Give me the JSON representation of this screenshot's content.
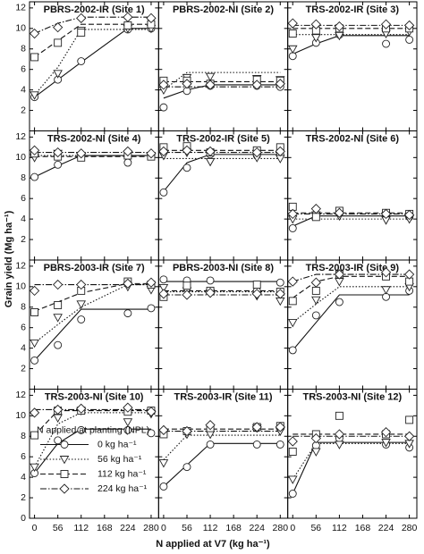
{
  "chart_data": {
    "type": "line",
    "xlabel": "N applied at V7 (kg ha⁻¹)",
    "ylabel": "Grain yield (Mg ha⁻¹)",
    "x": [
      0,
      56,
      112,
      224,
      280
    ],
    "xlim": [
      -12,
      298
    ],
    "xticks": [
      0,
      56,
      112,
      168,
      224,
      280
    ],
    "ylim": [
      0,
      12.6
    ],
    "yticks": [
      0,
      2,
      4,
      6,
      8,
      10,
      12
    ],
    "legend_title": "N applied at planting (NPL)",
    "legend_panel": 9,
    "series_styles": [
      {
        "name": "0 kg ha⁻¹",
        "marker": "circle",
        "dash": "solid"
      },
      {
        "name": "56 kg ha⁻¹",
        "marker": "triangle",
        "dash": "dotted"
      },
      {
        "name": "112 kg ha⁻¹",
        "marker": "square",
        "dash": "dashed"
      },
      {
        "name": "224 kg ha⁻¹",
        "marker": "diamond",
        "dash": "dashdot"
      }
    ],
    "panels": [
      {
        "title": "PBRS-2002-IR (Site 1)",
        "series": [
          {
            "values": [
              3.3,
              5.0,
              6.8,
              9.9,
              10.0
            ],
            "fit": [
              3.3,
              5.0,
              6.7,
              10.0,
              10.0
            ]
          },
          {
            "values": [
              3.5,
              5.6,
              9.8,
              10.0,
              10.0
            ],
            "fit": [
              3.5,
              6.2,
              9.9,
              9.9,
              9.9
            ]
          },
          {
            "values": [
              7.2,
              8.6,
              9.6,
              10.3,
              10.4
            ],
            "fit": [
              7.2,
              8.8,
              10.4,
              10.4,
              10.4
            ]
          },
          {
            "values": [
              9.5,
              10.1,
              11.0,
              11.1,
              11.0
            ],
            "fit": [
              9.5,
              10.5,
              11.1,
              11.1,
              11.1
            ]
          }
        ]
      },
      {
        "title": "PBRS-2002-NI (Site 2)",
        "series": [
          {
            "values": [
              2.3,
              3.9,
              4.4,
              4.4,
              4.3
            ],
            "fit": [
              3.2,
              4.0,
              4.5,
              4.5,
              4.5
            ]
          },
          {
            "values": [
              4.0,
              5.2,
              5.3,
              5.1,
              5.0
            ],
            "fit": [
              4.0,
              5.7,
              5.7,
              5.7,
              5.7
            ]
          },
          {
            "values": [
              4.9,
              4.9,
              4.6,
              5.0,
              4.9
            ],
            "fit": [
              4.8,
              4.8,
              4.8,
              4.8,
              4.8
            ]
          },
          {
            "values": [
              4.5,
              4.6,
              4.5,
              4.5,
              4.6
            ],
            "fit": [
              4.3,
              4.3,
              4.3,
              4.3,
              4.3
            ]
          }
        ]
      },
      {
        "title": "TRS-2002-IR (Site 3)",
        "series": [
          {
            "values": [
              7.3,
              8.6,
              9.4,
              8.5,
              8.9
            ],
            "fit": [
              7.5,
              8.5,
              9.3,
              9.3,
              9.3
            ]
          },
          {
            "values": [
              8.0,
              9.1,
              9.3,
              9.5,
              9.7
            ],
            "fit": [
              9.4,
              9.4,
              9.4,
              9.4,
              9.4
            ]
          },
          {
            "values": [
              9.5,
              9.8,
              10.0,
              10.0,
              10.0
            ],
            "fit": [
              10.0,
              10.0,
              10.0,
              10.0,
              10.0
            ]
          },
          {
            "values": [
              10.5,
              10.4,
              10.2,
              10.4,
              10.3
            ],
            "fit": [
              10.3,
              10.3,
              10.3,
              10.3,
              10.3
            ]
          }
        ]
      },
      {
        "title": "TRS-2002-NI (Site 4)",
        "series": [
          {
            "values": [
              8.1,
              9.3,
              10.1,
              9.5,
              10.2
            ],
            "fit": [
              8.1,
              9.2,
              10.2,
              10.2,
              10.2
            ]
          },
          {
            "values": [
              10.0,
              10.4,
              10.2,
              10.3,
              10.2
            ],
            "fit": [
              10.2,
              10.2,
              10.2,
              10.2,
              10.2
            ]
          },
          {
            "values": [
              10.4,
              10.1,
              10.0,
              10.2,
              10.1
            ],
            "fit": [
              10.1,
              10.1,
              10.1,
              10.1,
              10.1
            ]
          },
          {
            "values": [
              10.7,
              10.5,
              10.4,
              10.6,
              10.4
            ],
            "fit": [
              10.5,
              10.5,
              10.5,
              10.5,
              10.5
            ]
          }
        ]
      },
      {
        "title": "TRS-2002-IR (Site 5)",
        "series": [
          {
            "values": [
              6.6,
              9.0,
              10.3,
              10.2,
              10.3
            ],
            "fit": [
              6.7,
              9.5,
              10.3,
              10.3,
              10.3
            ]
          },
          {
            "values": [
              10.2,
              10.5,
              9.6,
              10.0,
              9.9
            ],
            "fit": [
              9.9,
              9.9,
              9.9,
              9.9,
              9.9
            ]
          },
          {
            "values": [
              11.0,
              11.1,
              10.5,
              10.7,
              11.0
            ],
            "fit": [
              10.7,
              10.7,
              10.7,
              10.7,
              10.7
            ]
          },
          {
            "values": [
              10.6,
              10.7,
              10.6,
              10.5,
              10.6
            ],
            "fit": [
              10.5,
              10.5,
              10.5,
              10.5,
              10.5
            ]
          }
        ]
      },
      {
        "title": "TRS-2002-NI (Site 6)",
        "series": [
          {
            "values": [
              3.1,
              4.5,
              4.8,
              4.3,
              4.2
            ],
            "fit": [
              3.3,
              4.3,
              4.3,
              4.3,
              4.3
            ]
          },
          {
            "values": [
              4.0,
              4.4,
              4.3,
              3.9,
              4.0
            ],
            "fit": [
              4.0,
              4.0,
              4.0,
              4.0,
              4.0
            ]
          },
          {
            "values": [
              5.2,
              4.2,
              4.8,
              4.6,
              4.5
            ],
            "fit": [
              4.6,
              4.6,
              4.6,
              4.6,
              4.6
            ]
          },
          {
            "values": [
              4.5,
              5.0,
              4.6,
              4.5,
              4.4
            ],
            "fit": [
              4.5,
              4.5,
              4.5,
              4.5,
              4.5
            ]
          }
        ]
      },
      {
        "title": "PBRS-2003-IR (Site 7)",
        "series": [
          {
            "values": [
              2.8,
              4.3,
              6.8,
              7.4,
              7.9
            ],
            "fit": [
              2.8,
              5.3,
              7.8,
              7.8,
              7.8
            ]
          },
          {
            "values": [
              4.5,
              7.0,
              8.3,
              10.0,
              9.7
            ],
            "fit": [
              4.5,
              6.3,
              8.0,
              10.2,
              10.2
            ]
          },
          {
            "values": [
              7.5,
              8.2,
              9.6,
              10.5,
              10.2
            ],
            "fit": [
              7.6,
              8.5,
              9.4,
              10.3,
              10.3
            ]
          },
          {
            "values": [
              9.6,
              10.2,
              10.2,
              10.3,
              10.4
            ],
            "fit": [
              10.2,
              10.2,
              10.2,
              10.2,
              10.2
            ]
          }
        ]
      },
      {
        "title": "PBRS-2003-NI (Site 8)",
        "series": [
          {
            "values": [
              10.7,
              10.6,
              10.6,
              9.6,
              10.4
            ],
            "fit": [
              10.5,
              10.5,
              10.5,
              10.5,
              10.5
            ]
          },
          {
            "values": [
              9.9,
              9.6,
              9.4,
              9.1,
              8.6
            ],
            "fit": [
              9.5,
              9.5,
              9.5,
              9.5,
              9.5
            ]
          },
          {
            "values": [
              9.0,
              10.1,
              9.6,
              10.2,
              9.5
            ],
            "fit": [
              9.6,
              9.6,
              9.6,
              9.6,
              9.6
            ]
          },
          {
            "values": [
              9.3,
              9.2,
              9.4,
              9.3,
              9.3
            ],
            "fit": [
              9.2,
              9.2,
              9.2,
              9.2,
              9.2
            ]
          }
        ]
      },
      {
        "title": "TRS-2003-IR (Site 9)",
        "series": [
          {
            "values": [
              3.8,
              7.2,
              8.5,
              9.0,
              9.6
            ],
            "fit": [
              3.8,
              6.5,
              9.2,
              9.2,
              9.2
            ]
          },
          {
            "values": [
              6.5,
              8.7,
              10.5,
              9.7,
              10.0
            ],
            "fit": [
              6.5,
              8.3,
              10.0,
              10.0,
              10.0
            ]
          },
          {
            "values": [
              8.6,
              9.6,
              11.2,
              11.0,
              10.5
            ],
            "fit": [
              8.9,
              10.5,
              11.0,
              11.0,
              11.0
            ]
          },
          {
            "values": [
              10.5,
              10.4,
              11.2,
              11.4,
              11.2
            ],
            "fit": [
              10.5,
              11.2,
              11.2,
              11.2,
              11.2
            ]
          }
        ]
      },
      {
        "title": "TRS-2003-NI (Site 10)",
        "series": [
          {
            "values": [
              4.4,
              7.6,
              8.6,
              8.6,
              8.3
            ],
            "fit": [
              4.4,
              7.3,
              8.7,
              8.7,
              8.7
            ]
          },
          {
            "values": [
              5.0,
              9.8,
              10.5,
              9.4,
              10.2
            ],
            "fit": [
              5.0,
              9.2,
              10.3,
              10.3,
              10.3
            ]
          },
          {
            "values": [
              8.1,
              10.5,
              10.5,
              10.4,
              10.5
            ],
            "fit": [
              8.1,
              10.5,
              10.5,
              10.5,
              10.5
            ]
          },
          {
            "values": [
              10.3,
              10.6,
              10.7,
              10.8,
              10.4
            ],
            "fit": [
              10.6,
              10.6,
              10.6,
              10.6,
              10.6
            ]
          }
        ]
      },
      {
        "title": "TRS-2003-IR (Site 11)",
        "series": [
          {
            "values": [
              3.1,
              5.0,
              7.2,
              7.2,
              7.2
            ],
            "fit": [
              3.1,
              5.2,
              7.3,
              7.3,
              7.3
            ]
          },
          {
            "values": [
              5.4,
              8.2,
              8.2,
              8.8,
              8.5
            ],
            "fit": [
              5.7,
              8.1,
              8.1,
              8.1,
              8.1
            ]
          },
          {
            "values": [
              8.2,
              8.5,
              8.8,
              8.9,
              9.0
            ],
            "fit": [
              8.7,
              8.7,
              8.7,
              8.7,
              8.7
            ]
          },
          {
            "values": [
              8.6,
              8.5,
              9.1,
              8.9,
              8.9
            ],
            "fit": [
              8.5,
              8.5,
              8.5,
              8.5,
              8.5
            ]
          }
        ]
      },
      {
        "title": "TRS-2003-NI (Site 12)",
        "series": [
          {
            "values": [
              2.4,
              7.1,
              7.8,
              7.2,
              6.9
            ],
            "fit": [
              2.4,
              7.4,
              7.4,
              7.4,
              7.4
            ]
          },
          {
            "values": [
              3.8,
              6.5,
              7.2,
              7.4,
              7.3
            ],
            "fit": [
              3.8,
              7.3,
              7.3,
              7.3,
              7.3
            ]
          },
          {
            "values": [
              6.5,
              8.2,
              10.0,
              8.2,
              9.6
            ],
            "fit": [
              8.2,
              8.2,
              8.2,
              8.2,
              8.2
            ]
          },
          {
            "values": [
              7.5,
              7.8,
              8.2,
              8.4,
              8.0
            ],
            "fit": [
              8.0,
              8.0,
              8.0,
              8.0,
              8.0
            ]
          }
        ]
      }
    ]
  }
}
